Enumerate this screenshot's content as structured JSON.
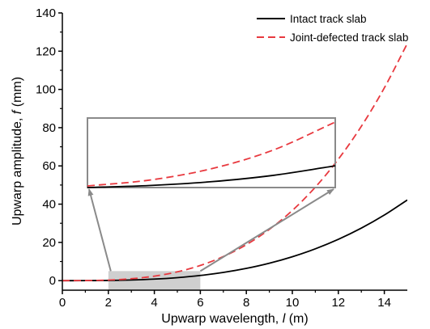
{
  "chart_data": {
    "type": "line",
    "xlabel": {
      "pre": "Upwarp wavelength, ",
      "var": "l",
      "post": " (m)"
    },
    "ylabel": {
      "pre": "Upwarp amplitude, ",
      "var": "f",
      "post": " (mm)"
    },
    "xlim": [
      0,
      15
    ],
    "ylim": [
      -5,
      140
    ],
    "xticks": [
      0,
      2,
      4,
      6,
      8,
      10,
      12,
      14
    ],
    "yticks": [
      0,
      20,
      40,
      60,
      80,
      100,
      120,
      140
    ],
    "legend_position": "top-right",
    "grid": false,
    "inset_zoom": {
      "x_range": [
        2,
        6
      ],
      "y_range": [
        -5,
        5
      ]
    },
    "series": [
      {
        "name": "Intact track slab",
        "color": "#000000",
        "style": "solid",
        "x": [
          0,
          1,
          2,
          3,
          4,
          5,
          6,
          7,
          8,
          9,
          10,
          11,
          12,
          13,
          14,
          15
        ],
        "y": [
          0,
          0.01,
          0.1,
          0.34,
          0.8,
          1.56,
          2.7,
          4.29,
          6.4,
          9.11,
          12.5,
          16.64,
          21.6,
          27.46,
          34.3,
          42.19
        ]
      },
      {
        "name": "Joint-defected track slab",
        "color": "#e8393f",
        "style": "dashed",
        "x": [
          0,
          1,
          2,
          3,
          4,
          5,
          6,
          7,
          8,
          9,
          10,
          11,
          12,
          13,
          14,
          15
        ],
        "y": [
          0,
          0.04,
          0.29,
          0.99,
          2.35,
          4.59,
          7.94,
          12.6,
          18.8,
          26.8,
          36.7,
          48.9,
          63.5,
          80.7,
          100.8,
          124.0
        ]
      }
    ]
  }
}
